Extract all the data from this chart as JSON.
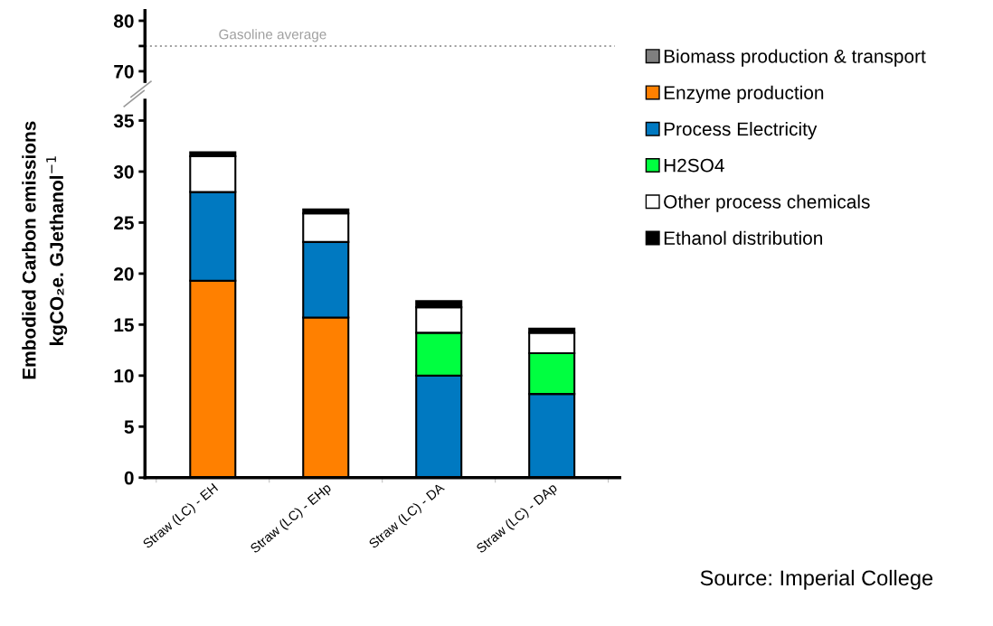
{
  "chart_data": [
    {
      "type": "bar",
      "categories": [
        null,
        null,
        null,
        null
      ],
      "tick_labels": "y",
      "ylim": [
        68,
        82
      ],
      "yticks": [
        70,
        {
          "value": 75,
          "label": null
        },
        80
      ],
      "ref_lines": [
        {
          "axis": "y",
          "value": 75,
          "label": "Gasoline average",
          "color": "#a0a0a0",
          "line_style": "dotted"
        }
      ]
    },
    {
      "type": "bar",
      "stacked": true,
      "categories": [
        "Straw (LC) - EH",
        "Straw (LC) - EHp",
        "Straw (LC) - DA",
        "Straw (LC) - DAp"
      ],
      "ylabel": "Embodied Carbon emissions\nkgCO₂e. GJethanol$^{−1}$",
      "ylim": [
        0,
        37
      ],
      "yticks": [
        0,
        5,
        10,
        15,
        20,
        25,
        30,
        35
      ],
      "legend": "right",
      "grid": false,
      "series": [
        {
          "name": "Biomass production & transport",
          "color": "#7f7f7f",
          "values": [
            0,
            0,
            null,
            0
          ]
        },
        {
          "name": "Enzyme production",
          "color": "#ff8000",
          "values": [
            19.3,
            15.7,
            0,
            0
          ]
        },
        {
          "name": "Process Electricity",
          "color": "#0079c1",
          "values": [
            8.7,
            7.4,
            10.0,
            8.2
          ]
        },
        {
          "name": "H2SO4",
          "color": "#00ff40",
          "values": [
            0,
            0,
            4.2,
            4.0
          ]
        },
        {
          "name": "Other process chemicals",
          "color": "#ffffff",
          "values": [
            3.5,
            2.8,
            2.5,
            2.0
          ]
        },
        {
          "name": "Ethanol distribution",
          "color": "#000000",
          "values": [
            0.4,
            0.4,
            0.6,
            0.4
          ]
        }
      ],
      "annotations": [
        "Source: Imperial College"
      ]
    }
  ]
}
